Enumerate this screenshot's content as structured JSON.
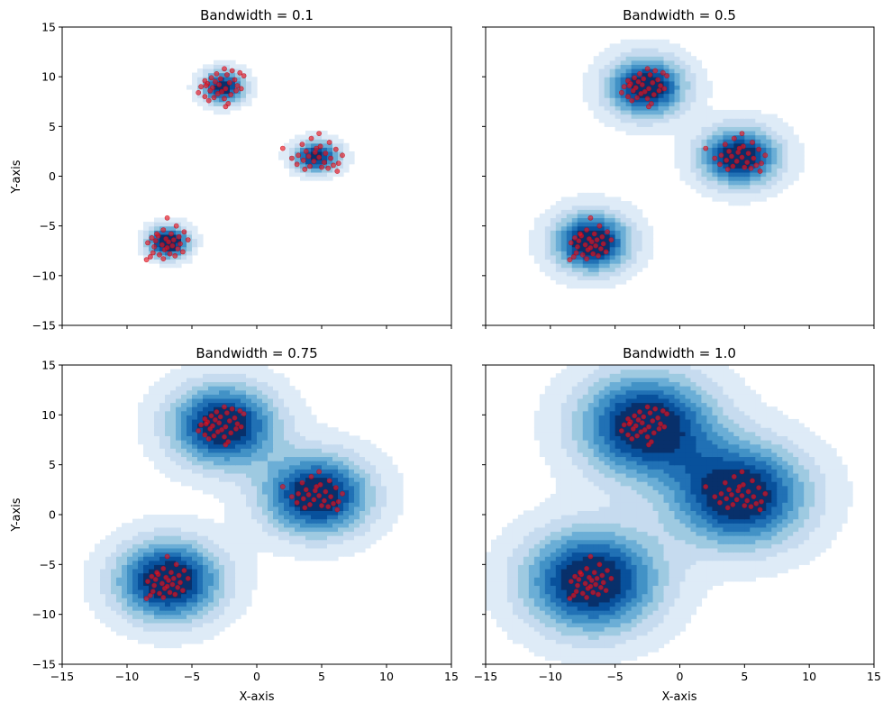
{
  "chart_data": [
    {
      "type": "kde-contour-scatter",
      "title": "Bandwidth = 0.1",
      "bandwidth": 0.1,
      "xlabel": "",
      "ylabel": "Y-axis",
      "xlim": [
        -15,
        15
      ],
      "ylim": [
        -15,
        15
      ],
      "xticks": [
        -15,
        -10,
        -5,
        0,
        5,
        10,
        15
      ],
      "yticks": [
        -15,
        -10,
        -5,
        0,
        5,
        10,
        15
      ],
      "show_x_ticklabels": false,
      "show_y_ticklabels": true
    },
    {
      "type": "kde-contour-scatter",
      "title": "Bandwidth = 0.5",
      "bandwidth": 0.5,
      "xlabel": "",
      "ylabel": "",
      "xlim": [
        -15,
        15
      ],
      "ylim": [
        -15,
        15
      ],
      "xticks": [
        -15,
        -10,
        -5,
        0,
        5,
        10,
        15
      ],
      "yticks": [
        -15,
        -10,
        -5,
        0,
        5,
        10,
        15
      ],
      "show_x_ticklabels": false,
      "show_y_ticklabels": false
    },
    {
      "type": "kde-contour-scatter",
      "title": "Bandwidth = 0.75",
      "bandwidth": 0.75,
      "xlabel": "X-axis",
      "ylabel": "Y-axis",
      "xlim": [
        -15,
        15
      ],
      "ylim": [
        -15,
        15
      ],
      "xticks": [
        -15,
        -10,
        -5,
        0,
        5,
        10,
        15
      ],
      "yticks": [
        -15,
        -10,
        -5,
        0,
        5,
        10,
        15
      ],
      "show_x_ticklabels": true,
      "show_y_ticklabels": true
    },
    {
      "type": "kde-contour-scatter",
      "title": "Bandwidth = 1.0",
      "bandwidth": 1.0,
      "xlabel": "X-axis",
      "ylabel": "",
      "xlim": [
        -15,
        15
      ],
      "ylim": [
        -15,
        15
      ],
      "xticks": [
        -15,
        -10,
        -5,
        0,
        5,
        10,
        15
      ],
      "yticks": [
        -15,
        -10,
        -5,
        0,
        5,
        10,
        15
      ],
      "show_x_ticklabels": true,
      "show_y_ticklabels": false
    }
  ],
  "clusters": [
    {
      "center": [
        -2.6,
        9.0
      ],
      "spread": [
        0.9,
        0.9
      ]
    },
    {
      "center": [
        4.6,
        2.0
      ],
      "spread": [
        1.0,
        0.8
      ]
    },
    {
      "center": [
        -6.8,
        -6.6
      ],
      "spread": [
        0.8,
        0.8
      ]
    }
  ],
  "points": [
    [
      -2.5,
      10.8
    ],
    [
      -1.9,
      10.6
    ],
    [
      -1.3,
      10.4
    ],
    [
      -3.1,
      10.3
    ],
    [
      -2.3,
      10.2
    ],
    [
      -1.0,
      10.1
    ],
    [
      -3.5,
      9.9
    ],
    [
      -2.8,
      9.8
    ],
    [
      -1.7,
      9.7
    ],
    [
      -4.0,
      9.6
    ],
    [
      -3.2,
      9.5
    ],
    [
      -2.1,
      9.4
    ],
    [
      -3.8,
      9.3
    ],
    [
      -2.9,
      9.2
    ],
    [
      -1.5,
      9.1
    ],
    [
      -4.3,
      9.0
    ],
    [
      -3.4,
      8.9
    ],
    [
      -2.4,
      8.8
    ],
    [
      -1.2,
      8.8
    ],
    [
      -3.6,
      8.6
    ],
    [
      -2.7,
      8.5
    ],
    [
      -4.5,
      8.4
    ],
    [
      -3.0,
      8.3
    ],
    [
      -2.0,
      8.2
    ],
    [
      -4.0,
      8.0
    ],
    [
      -3.3,
      7.9
    ],
    [
      -2.5,
      7.8
    ],
    [
      -3.7,
      7.6
    ],
    [
      -2.2,
      7.3
    ],
    [
      -2.4,
      7.0
    ],
    [
      -1.6,
      8.6
    ],
    [
      -3.9,
      9.1
    ],
    [
      4.8,
      4.3
    ],
    [
      4.2,
      3.8
    ],
    [
      5.6,
      3.4
    ],
    [
      3.5,
      3.2
    ],
    [
      4.9,
      3.0
    ],
    [
      2.0,
      2.8
    ],
    [
      6.1,
      2.7
    ],
    [
      3.8,
      2.5
    ],
    [
      4.5,
      2.4
    ],
    [
      5.3,
      2.3
    ],
    [
      3.2,
      2.1
    ],
    [
      6.6,
      2.1
    ],
    [
      4.0,
      2.0
    ],
    [
      4.8,
      1.9
    ],
    [
      5.7,
      1.8
    ],
    [
      2.7,
      1.8
    ],
    [
      3.6,
      1.6
    ],
    [
      4.4,
      1.5
    ],
    [
      5.2,
      1.4
    ],
    [
      6.3,
      1.3
    ],
    [
      3.1,
      1.2
    ],
    [
      4.1,
      1.0
    ],
    [
      5.0,
      0.9
    ],
    [
      3.7,
      0.7
    ],
    [
      5.5,
      0.8
    ],
    [
      6.2,
      0.5
    ],
    [
      4.6,
      2.8
    ],
    [
      5.9,
      1.1
    ],
    [
      -6.9,
      -4.2
    ],
    [
      -6.2,
      -5.0
    ],
    [
      -7.2,
      -5.4
    ],
    [
      -5.6,
      -5.6
    ],
    [
      -6.6,
      -5.8
    ],
    [
      -7.6,
      -6.0
    ],
    [
      -6.0,
      -6.1
    ],
    [
      -8.1,
      -6.2
    ],
    [
      -7.0,
      -6.3
    ],
    [
      -6.4,
      -6.4
    ],
    [
      -5.3,
      -6.4
    ],
    [
      -7.8,
      -6.5
    ],
    [
      -6.8,
      -6.6
    ],
    [
      -8.4,
      -6.7
    ],
    [
      -5.9,
      -6.8
    ],
    [
      -7.3,
      -6.9
    ],
    [
      -6.5,
      -7.0
    ],
    [
      -7.9,
      -7.1
    ],
    [
      -6.1,
      -7.3
    ],
    [
      -7.1,
      -7.4
    ],
    [
      -5.7,
      -7.6
    ],
    [
      -8.0,
      -7.7
    ],
    [
      -6.7,
      -7.8
    ],
    [
      -7.5,
      -7.9
    ],
    [
      -6.3,
      -8.0
    ],
    [
      -8.2,
      -8.1
    ],
    [
      -7.2,
      -8.3
    ],
    [
      -8.5,
      -8.4
    ],
    [
      -6.9,
      -7.2
    ],
    [
      -7.7,
      -5.8
    ]
  ],
  "colors": {
    "point": "#e8141e",
    "point_edge": "#c00010",
    "blues": [
      "#f7fbff",
      "#deebf7",
      "#c6dbef",
      "#9ecae1",
      "#6baed6",
      "#4292c6",
      "#2171b5",
      "#08519c",
      "#08306b"
    ]
  }
}
